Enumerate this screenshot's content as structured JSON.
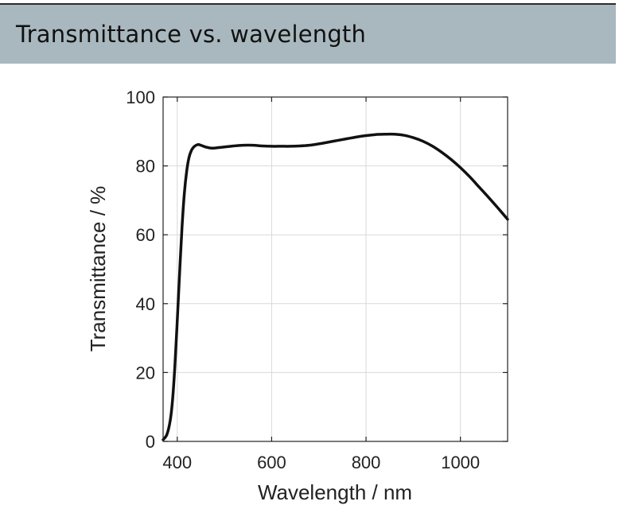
{
  "header": {
    "title": "Transmittance vs. wavelength"
  },
  "colors": {
    "header_background": "#a9b8bf",
    "curve": "#111111",
    "grid": "#d9d9d9"
  },
  "chart_data": {
    "type": "line",
    "title": "",
    "xlabel": "Wavelength / nm",
    "ylabel": "Transmittance / %",
    "xlim": [
      370,
      1100
    ],
    "ylim": [
      0,
      100
    ],
    "grid": true,
    "x_ticks": [
      400,
      600,
      800,
      1000
    ],
    "y_ticks": [
      0,
      20,
      40,
      60,
      80,
      100
    ],
    "series": [
      {
        "name": "",
        "x": [
          370,
          378,
          385,
          390,
          395,
          400,
          405,
          410,
          415,
          420,
          425,
          430,
          435,
          440,
          445,
          450,
          460,
          470,
          480,
          500,
          520,
          540,
          560,
          580,
          600,
          620,
          640,
          660,
          680,
          700,
          720,
          740,
          760,
          780,
          800,
          820,
          840,
          860,
          880,
          900,
          920,
          940,
          960,
          980,
          1000,
          1020,
          1040,
          1060,
          1080,
          1100
        ],
        "y": [
          0.5,
          2,
          6,
          12,
          22,
          35,
          49,
          62,
          72,
          78.5,
          82.5,
          84.5,
          85.5,
          86,
          86.2,
          86,
          85.5,
          85.2,
          85.2,
          85.5,
          85.8,
          86.0,
          86.0,
          85.8,
          85.7,
          85.7,
          85.7,
          85.8,
          86.0,
          86.4,
          86.9,
          87.4,
          87.9,
          88.4,
          88.8,
          89.1,
          89.2,
          89.2,
          88.9,
          88.2,
          87.2,
          85.8,
          84.0,
          81.9,
          79.5,
          76.8,
          73.8,
          70.8,
          67.7,
          64.5
        ]
      }
    ]
  }
}
